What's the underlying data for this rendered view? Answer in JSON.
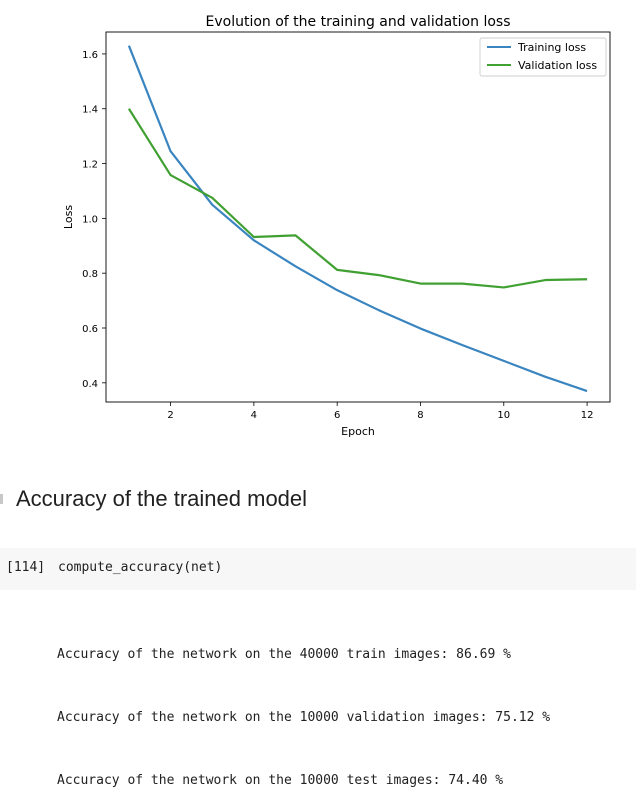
{
  "chart_data": {
    "type": "line",
    "title": "Evolution of the training and validation loss",
    "xlabel": "Epoch",
    "ylabel": "Loss",
    "xlim": [
      0.45,
      12.55
    ],
    "ylim": [
      0.33,
      1.68
    ],
    "xticks": [
      2,
      4,
      6,
      8,
      10,
      12
    ],
    "yticks": [
      0.4,
      0.6,
      0.8,
      1.0,
      1.2,
      1.4,
      1.6
    ],
    "grid": false,
    "legend_position": "top-right",
    "x": [
      1,
      2,
      3,
      4,
      5,
      6,
      7,
      8,
      9,
      10,
      11,
      12
    ],
    "series": [
      {
        "name": "Training loss",
        "color": "#3a85c0",
        "values": [
          1.63,
          1.245,
          1.05,
          0.92,
          0.825,
          0.738,
          0.665,
          0.598,
          0.538,
          0.48,
          0.422,
          0.37
        ]
      },
      {
        "name": "Validation loss",
        "color": "#40a032",
        "values": [
          1.4,
          1.158,
          1.075,
          0.932,
          0.938,
          0.812,
          0.793,
          0.762,
          0.762,
          0.748,
          0.775,
          0.778
        ]
      }
    ]
  },
  "section": {
    "heading": "Accuracy of the trained model"
  },
  "code_cell": {
    "prompt": "[114]",
    "code": "compute_accuracy(net)"
  },
  "output": {
    "lines": [
      "Accuracy of the network on the 40000 train images: 86.69 %",
      "Accuracy of the network on the 10000 validation images: 75.12 %",
      "Accuracy of the network on the 10000 test images: 74.40 %"
    ]
  }
}
